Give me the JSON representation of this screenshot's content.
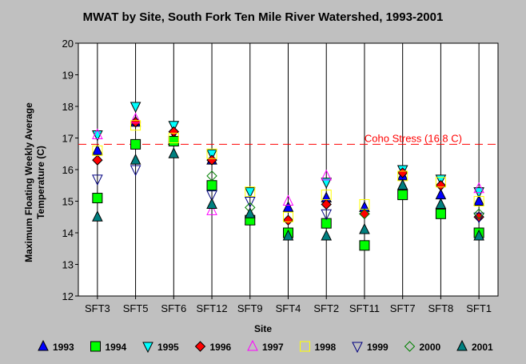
{
  "chart_data": {
    "type": "scatter",
    "title": "MWAT by Site, South Fork Ten Mile River Watershed, 1993-2001",
    "xlabel": "Site",
    "ylabel": "Maximum Floating Weekly Average Temperature (C)",
    "categories": [
      "SFT3",
      "SFT5",
      "SFT6",
      "SFT12",
      "SFT9",
      "SFT4",
      "SFT2",
      "SFT11",
      "SFT7",
      "SFT8",
      "SFT1"
    ],
    "ylim": [
      12,
      20
    ],
    "yticks": [
      "12",
      "13",
      "14",
      "15",
      "16",
      "17",
      "18",
      "19",
      "20"
    ],
    "grid": "vertical",
    "reference_line": {
      "value": 16.8,
      "label": "Coho Stress (16.8 C)",
      "color": "#ff0000"
    },
    "legend_position": "bottom",
    "series": [
      {
        "name": "1993",
        "marker": "triangle-up",
        "color": "#0000ff",
        "filled": true,
        "values": [
          16.6,
          17.5,
          17.0,
          16.3,
          14.4,
          14.8,
          15.1,
          14.8,
          15.8,
          15.2,
          15.0
        ]
      },
      {
        "name": "1994",
        "marker": "square",
        "color": "#00ff00",
        "filled": true,
        "values": [
          15.1,
          16.8,
          16.9,
          15.5,
          14.4,
          14.0,
          14.3,
          13.6,
          15.2,
          14.6,
          14.0
        ]
      },
      {
        "name": "1995",
        "marker": "triangle-down",
        "color": "#00ffff",
        "filled": true,
        "values": [
          17.1,
          18.0,
          17.4,
          16.5,
          15.3,
          null,
          15.6,
          null,
          16.0,
          15.7,
          15.3
        ]
      },
      {
        "name": "1996",
        "marker": "diamond",
        "color": "#ff0000",
        "filled": true,
        "values": [
          16.3,
          17.5,
          17.2,
          16.3,
          null,
          14.4,
          14.9,
          14.6,
          15.9,
          15.5,
          14.5
        ]
      },
      {
        "name": "1997",
        "marker": "triangle-up",
        "color": "#ff00ff",
        "filled": false,
        "values": [
          17.1,
          17.6,
          null,
          14.7,
          null,
          15.0,
          15.8,
          null,
          null,
          null,
          15.4
        ]
      },
      {
        "name": "1998",
        "marker": "square",
        "color": "#ffff00",
        "filled": false,
        "values": [
          16.6,
          17.4,
          17.0,
          16.5,
          15.3,
          14.5,
          15.2,
          14.9,
          15.8,
          15.6,
          15.0
        ]
      },
      {
        "name": "1999",
        "marker": "triangle-down",
        "color": "#000080",
        "filled": false,
        "values": [
          15.7,
          16.0,
          null,
          15.2,
          15.0,
          null,
          14.6,
          null,
          null,
          null,
          14.5
        ]
      },
      {
        "name": "2000",
        "marker": "diamond",
        "color": "#008000",
        "filled": false,
        "values": [
          null,
          null,
          null,
          15.8,
          14.8,
          null,
          null,
          14.6,
          null,
          null,
          14.6
        ]
      },
      {
        "name": "2001",
        "marker": "triangle-up",
        "color": "#008080",
        "filled": true,
        "values": [
          14.5,
          16.3,
          16.5,
          14.9,
          14.6,
          13.9,
          13.9,
          14.1,
          15.5,
          14.9,
          13.9
        ]
      }
    ]
  }
}
